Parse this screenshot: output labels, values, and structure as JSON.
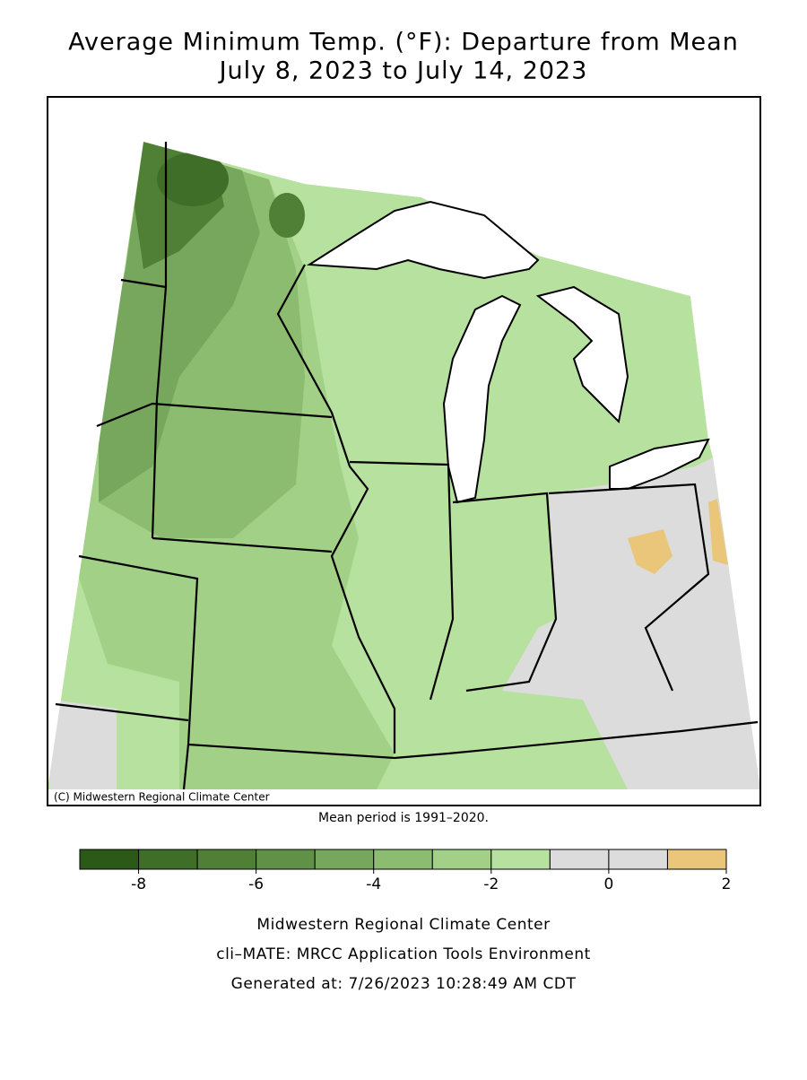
{
  "title": [
    "Average Minimum Temp. (°F): Departure from Mean",
    "July 8, 2023 to July 14, 2023"
  ],
  "map": {
    "copyright": "(C) Midwestern Regional Climate Center",
    "note": "Mean period is 1991–2020."
  },
  "legend": {
    "bins": [
      -9,
      -8,
      -7,
      -6,
      -5,
      -4,
      -3,
      -2,
      -1,
      0,
      1,
      2
    ],
    "colors": [
      "#2b5a18",
      "#3e6e28",
      "#4f8036",
      "#619147",
      "#77a75c",
      "#8cbc70",
      "#a2d086",
      "#b7e19e",
      "#dcdcdc",
      "#dcdcdc",
      "#e9c679"
    ],
    "ticks": [
      -8,
      -6,
      -4,
      -2,
      0,
      2
    ]
  },
  "footer": [
    "Midwestern Regional Climate Center",
    "cli–MATE: MRCC Application Tools Environment",
    "Generated at: 7/26/2023 10:28:49 AM CDT"
  ]
}
